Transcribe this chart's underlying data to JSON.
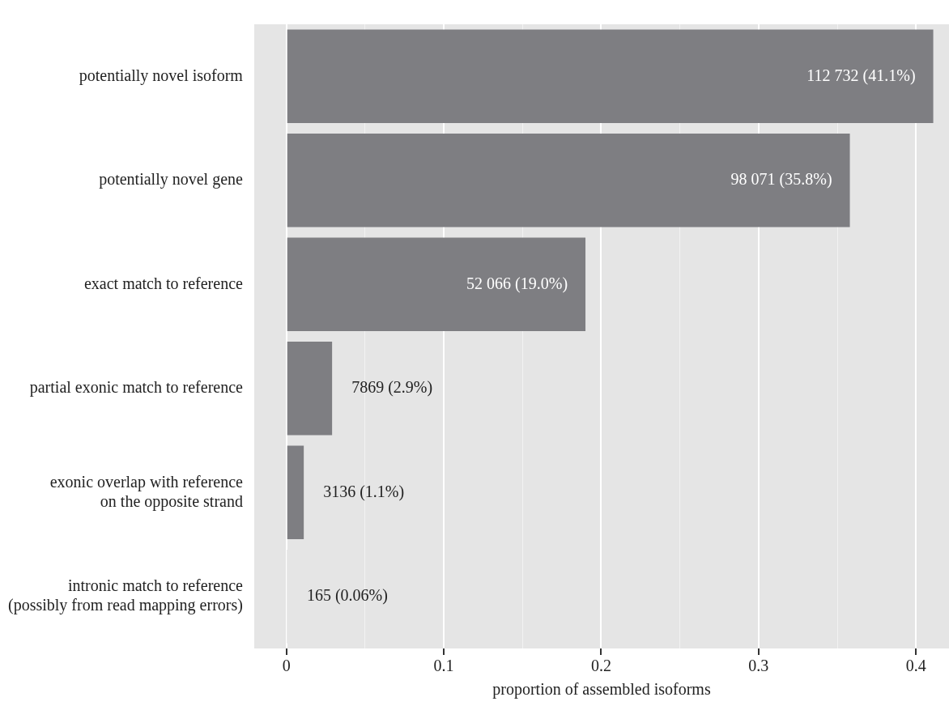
{
  "chart_data": {
    "type": "bar",
    "orientation": "horizontal",
    "xlabel": "proportion of assembled isoforms",
    "categories": [
      "potentially novel isoform",
      "potentially novel gene",
      "exact match to reference",
      "partial exonic match to reference",
      "exonic overlap with reference\non the opposite strand",
      "intronic match to reference\n(possibly from read mapping errors)"
    ],
    "values": [
      0.411,
      0.358,
      0.19,
      0.029,
      0.011,
      0.0006
    ],
    "value_labels": [
      "112 732 (41.1%)",
      "98 071 (35.8%)",
      "52 066 (19.0%)",
      "7869 (2.9%)",
      "3136 (1.1%)",
      "165 (0.06%)"
    ],
    "color": "#7e7e82",
    "xlim": [
      -0.0205,
      0.421
    ],
    "xticks": [
      0,
      {
        "value": 0.05,
        "label": null
      },
      0.1,
      {
        "value": 0.15,
        "label": null
      },
      0.2,
      {
        "value": 0.25,
        "label": null
      },
      0.3,
      {
        "value": 0.35,
        "label": null
      },
      0.4
    ],
    "grid": "x",
    "legend": false
  }
}
